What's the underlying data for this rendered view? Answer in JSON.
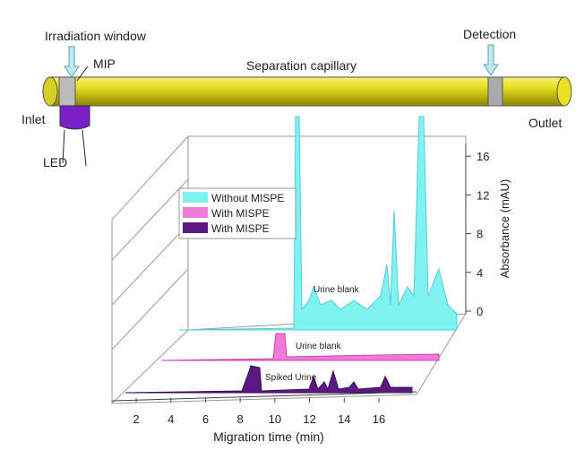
{
  "diagram": {
    "labels": {
      "irradiation_window": "Irradiation window",
      "mip": "MIP",
      "separation_capillary": "Separation capillary",
      "detection": "Detection",
      "inlet": "Inlet",
      "outlet": "Outlet",
      "led": "LED"
    }
  },
  "chart": {
    "x_title": "Migration time (min)",
    "y_title": "Absorbance (mAU)",
    "xticks": [
      2,
      4,
      6,
      8,
      10,
      12,
      14,
      16
    ],
    "yticks": [
      0,
      4,
      8,
      12,
      16
    ],
    "legend": [
      {
        "name": "Without MISPE",
        "color": "#7ef3f0"
      },
      {
        "name": "With MISPE",
        "color": "#f07ad8"
      },
      {
        "name": "With MISPE",
        "color": "#5a1880"
      }
    ],
    "annotations": [
      "Urine blank",
      "Urine blank",
      "Spiked Urine"
    ]
  }
}
